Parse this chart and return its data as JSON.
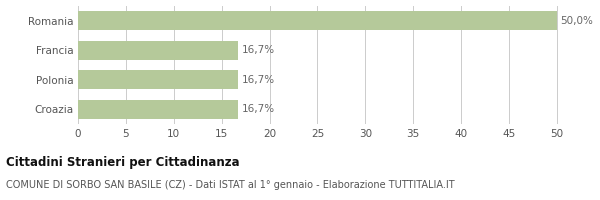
{
  "categories": [
    "Croazia",
    "Polonia",
    "Francia",
    "Romania"
  ],
  "values": [
    16.7,
    16.7,
    16.7,
    50.0
  ],
  "labels": [
    "16,7%",
    "16,7%",
    "16,7%",
    "50,0%"
  ],
  "bar_color": "#b5c99a",
  "xlim": [
    0,
    52
  ],
  "xticks": [
    0,
    5,
    10,
    15,
    20,
    25,
    30,
    35,
    40,
    45,
    50
  ],
  "title_bold": "Cittadini Stranieri per Cittadinanza",
  "subtitle": "COMUNE DI SORBO SAN BASILE (CZ) - Dati ISTAT al 1° gennaio - Elaborazione TUTTITALIA.IT",
  "background_color": "#ffffff",
  "grid_color": "#cccccc",
  "text_color": "#555555",
  "label_color": "#666666",
  "label_fontsize": 7.5,
  "tick_fontsize": 7.5,
  "ylabel_fontsize": 7.5,
  "title_fontsize": 8.5,
  "subtitle_fontsize": 7.0
}
